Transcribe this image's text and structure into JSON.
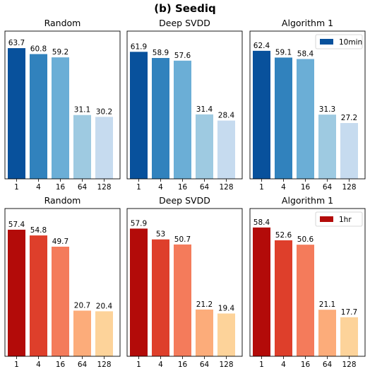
{
  "figure": {
    "title": "(b) Seediq"
  },
  "chart_data": [
    {
      "type": "bar",
      "title": "Random",
      "categories": [
        "1",
        "4",
        "16",
        "64",
        "128"
      ],
      "values": [
        63.7,
        60.8,
        59.2,
        31.1,
        30.2
      ],
      "data_labels": [
        "63.7",
        "60.8",
        "59.2",
        "31.1",
        "30.2"
      ],
      "colors": [
        "#08519c",
        "#3182bd",
        "#6baed6",
        "#9ecae1",
        "#c6dbef"
      ],
      "ylim": [
        0,
        72
      ],
      "grid": false,
      "legend": null
    },
    {
      "type": "bar",
      "title": "Deep SVDD",
      "categories": [
        "1",
        "4",
        "16",
        "64",
        "128"
      ],
      "values": [
        61.9,
        58.9,
        57.6,
        31.4,
        28.4
      ],
      "data_labels": [
        "61.9",
        "58.9",
        "57.6",
        "31.4",
        "28.4"
      ],
      "colors": [
        "#08519c",
        "#3182bd",
        "#6baed6",
        "#9ecae1",
        "#c6dbef"
      ],
      "ylim": [
        0,
        72
      ],
      "grid": false,
      "legend": null
    },
    {
      "type": "bar",
      "title": "Algorithm 1",
      "categories": [
        "1",
        "4",
        "16",
        "64",
        "128"
      ],
      "values": [
        62.4,
        59.1,
        58.4,
        31.3,
        27.2
      ],
      "data_labels": [
        "62.4",
        "59.1",
        "58.4",
        "31.3",
        "27.2"
      ],
      "colors": [
        "#08519c",
        "#3182bd",
        "#6baed6",
        "#9ecae1",
        "#c6dbef"
      ],
      "ylim": [
        0,
        72
      ],
      "grid": false,
      "legend": {
        "label": "10min",
        "color": "#08519c",
        "placement": "top-right"
      }
    },
    {
      "type": "bar",
      "title": "Random",
      "categories": [
        "1",
        "4",
        "16",
        "64",
        "128"
      ],
      "values": [
        57.4,
        54.8,
        49.7,
        20.7,
        20.4
      ],
      "data_labels": [
        "57.4",
        "54.8",
        "49.7",
        "20.7",
        "20.4"
      ],
      "colors": [
        "#b30b09",
        "#de3f2b",
        "#f47b5b",
        "#fcac7a",
        "#fdd39a"
      ],
      "ylim": [
        0,
        67
      ],
      "grid": false,
      "legend": null
    },
    {
      "type": "bar",
      "title": "Deep SVDD",
      "categories": [
        "1",
        "4",
        "16",
        "64",
        "128"
      ],
      "values": [
        57.9,
        53,
        50.7,
        21.2,
        19.4
      ],
      "data_labels": [
        "57.9",
        "53",
        "50.7",
        "21.2",
        "19.4"
      ],
      "colors": [
        "#b30b09",
        "#de3f2b",
        "#f47b5b",
        "#fcac7a",
        "#fdd39a"
      ],
      "ylim": [
        0,
        67
      ],
      "grid": false,
      "legend": null
    },
    {
      "type": "bar",
      "title": "Algorithm 1",
      "categories": [
        "1",
        "4",
        "16",
        "64",
        "128"
      ],
      "values": [
        58.4,
        52.6,
        50.6,
        21.1,
        17.7
      ],
      "data_labels": [
        "58.4",
        "52.6",
        "50.6",
        "21.1",
        "17.7"
      ],
      "colors": [
        "#b30b09",
        "#de3f2b",
        "#f47b5b",
        "#fcac7a",
        "#fdd39a"
      ],
      "ylim": [
        0,
        67
      ],
      "grid": false,
      "legend": {
        "label": "1hr",
        "color": "#b30b09",
        "placement": "top-right"
      }
    }
  ]
}
